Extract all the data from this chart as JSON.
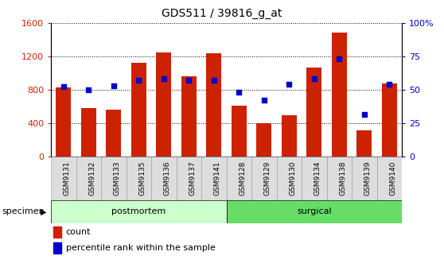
{
  "title": "GDS511 / 39816_g_at",
  "categories": [
    "GSM9131",
    "GSM9132",
    "GSM9133",
    "GSM9135",
    "GSM9136",
    "GSM9137",
    "GSM9141",
    "GSM9128",
    "GSM9129",
    "GSM9130",
    "GSM9134",
    "GSM9138",
    "GSM9139",
    "GSM9140"
  ],
  "bar_values": [
    820,
    580,
    560,
    1120,
    1240,
    960,
    1230,
    610,
    400,
    490,
    1060,
    1480,
    310,
    870
  ],
  "percentile_values": [
    52,
    50,
    53,
    57,
    58,
    57,
    57,
    48,
    42,
    54,
    58,
    73,
    31,
    54
  ],
  "bar_color": "#cc2200",
  "dot_color": "#0000cc",
  "left_ylim": [
    0,
    1600
  ],
  "right_ylim": [
    0,
    100
  ],
  "left_yticks": [
    0,
    400,
    800,
    1200,
    1600
  ],
  "right_yticks": [
    0,
    25,
    50,
    75,
    100
  ],
  "right_yticklabels": [
    "0",
    "25",
    "50",
    "75",
    "100%"
  ],
  "groups": [
    {
      "label": "postmortem",
      "start": 0,
      "end": 7,
      "color": "#ccffcc"
    },
    {
      "label": "surgical",
      "start": 7,
      "end": 14,
      "color": "#66dd66"
    }
  ],
  "legend_count_label": "count",
  "legend_pct_label": "percentile rank within the sample",
  "tick_label_color_left": "#cc2200",
  "tick_label_color_right": "#0000cc",
  "tick_bg_color": "#dddddd",
  "specimen_label": "specimen"
}
